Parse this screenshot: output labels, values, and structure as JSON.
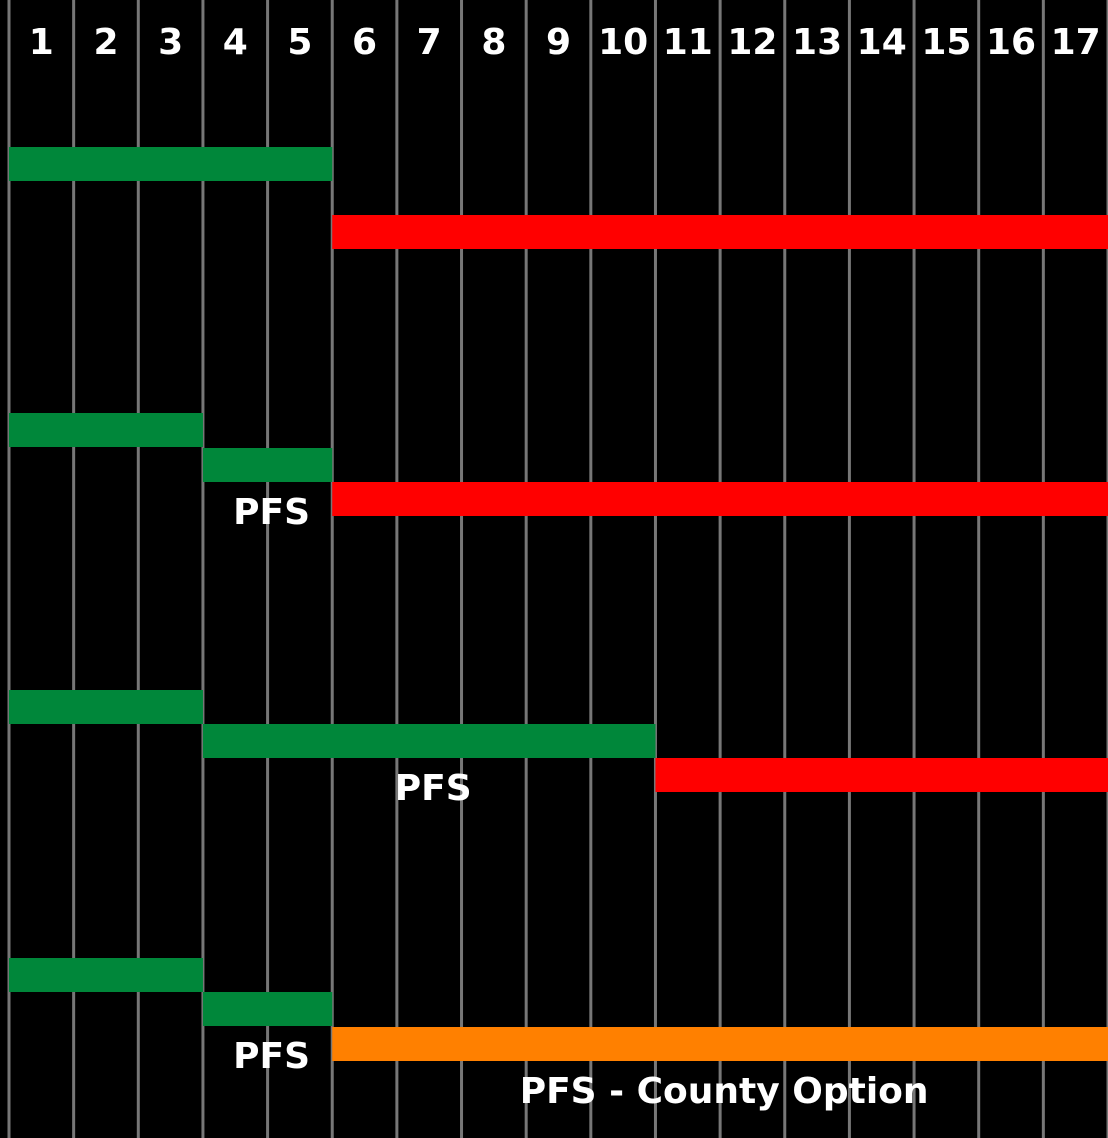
{
  "columns": [
    1,
    2,
    3,
    4,
    5,
    6,
    7,
    8,
    9,
    10,
    11,
    12,
    13,
    14,
    15,
    16,
    17
  ],
  "rows": [
    {
      "bars": [
        {
          "start": 1,
          "end": 5,
          "color": "#00873a"
        },
        {
          "start": 6,
          "end": 17,
          "color": "#ff0000"
        }
      ]
    },
    {
      "bars": [
        {
          "start": 1,
          "end": 3,
          "color": "#00873a"
        },
        {
          "start": 4,
          "end": 5,
          "color": "#00873a",
          "label": "PFS"
        },
        {
          "start": 6,
          "end": 17,
          "color": "#ff0000"
        }
      ]
    },
    {
      "bars": [
        {
          "start": 1,
          "end": 3,
          "color": "#00873a"
        },
        {
          "start": 4,
          "end": 10,
          "color": "#00873a",
          "label": "PFS"
        },
        {
          "start": 11,
          "end": 17,
          "color": "#ff0000"
        }
      ]
    },
    {
      "bars": [
        {
          "start": 1,
          "end": 3,
          "color": "#00873a"
        },
        {
          "start": 4,
          "end": 5,
          "color": "#00873a",
          "label": "PFS"
        },
        {
          "start": 6,
          "end": 17,
          "color": "#ff8000",
          "label": "PFS - County Option"
        }
      ]
    }
  ]
}
